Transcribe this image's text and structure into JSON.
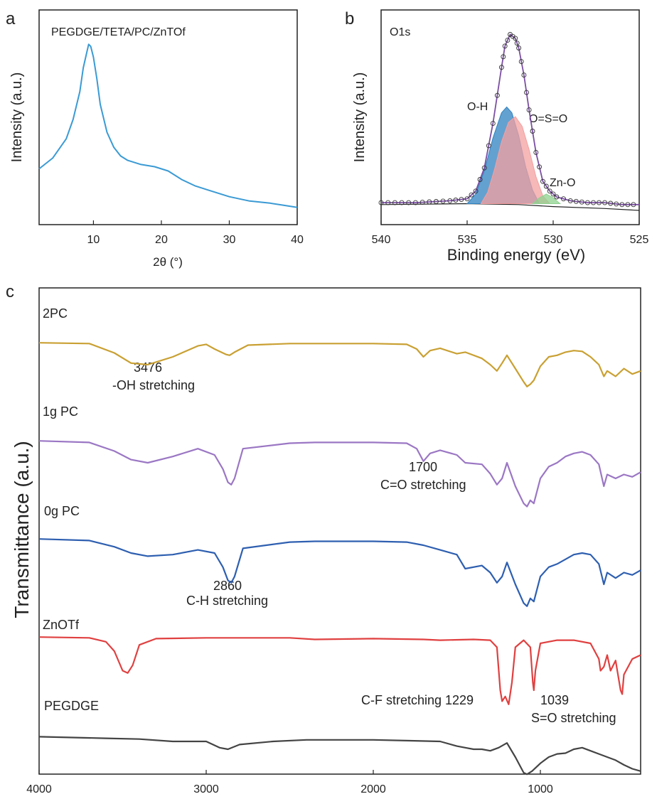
{
  "panels": {
    "a": {
      "label": "a"
    },
    "b": {
      "label": "b"
    },
    "c": {
      "label": "c"
    }
  },
  "chart_data": [
    {
      "panel": "a",
      "type": "line",
      "title": "PEGDGE/TETA/PC/ZnTOf",
      "xlabel": "2θ (°)",
      "ylabel": "Intensity (a.u.)",
      "xlim": [
        2,
        40
      ],
      "ylim": [
        0,
        1
      ],
      "xticks": [
        10,
        20,
        30,
        40
      ],
      "y_ticks_shown": false,
      "color": "#3a9ad4",
      "series": [
        {
          "x": [
            2,
            4,
            6,
            7,
            8,
            8.5,
            9,
            9.3,
            9.6,
            10,
            10.5,
            11,
            12,
            13,
            14,
            15,
            17,
            19,
            21,
            23,
            25,
            27,
            30,
            33,
            36,
            38,
            40
          ],
          "y": [
            0.26,
            0.31,
            0.4,
            0.49,
            0.62,
            0.73,
            0.8,
            0.84,
            0.83,
            0.78,
            0.68,
            0.56,
            0.43,
            0.36,
            0.32,
            0.3,
            0.28,
            0.27,
            0.25,
            0.21,
            0.18,
            0.16,
            0.13,
            0.11,
            0.1,
            0.09,
            0.08
          ]
        }
      ]
    },
    {
      "panel": "b",
      "type": "line",
      "title": "O1s",
      "xlabel": "Binding energy (eV)",
      "ylabel": "Intensity (a.u.)",
      "xlim": [
        540,
        525
      ],
      "ylim": [
        0,
        1
      ],
      "xticks": [
        540,
        535,
        530,
        525
      ],
      "y_ticks_shown": false,
      "annotations": [
        "O-H",
        "O=S=O",
        "Zn-O"
      ],
      "series": [
        {
          "role": "envelope",
          "color": "#7b4fa3",
          "x": [
            540,
            538,
            536,
            535,
            534.5,
            534,
            533.5,
            533,
            532.8,
            532.5,
            532.2,
            532,
            531.7,
            531.4,
            531,
            530.6,
            530.2,
            529.8,
            529,
            528,
            527,
            526,
            525
          ],
          "y": [
            0.04,
            0.04,
            0.05,
            0.06,
            0.1,
            0.22,
            0.45,
            0.74,
            0.85,
            0.91,
            0.89,
            0.84,
            0.7,
            0.52,
            0.3,
            0.15,
            0.1,
            0.07,
            0.05,
            0.04,
            0.04,
            0.03,
            0.03
          ]
        },
        {
          "role": "component",
          "name": "O-H",
          "fill": "#2f82c0",
          "x": [
            535,
            534.5,
            534,
            533.5,
            533,
            532.7,
            532.4,
            532,
            531.6,
            531.2,
            530.8
          ],
          "y": [
            0.0,
            0.05,
            0.17,
            0.34,
            0.47,
            0.5,
            0.47,
            0.35,
            0.19,
            0.07,
            0.0
          ]
        },
        {
          "role": "component",
          "name": "O=S=O",
          "fill": "#f4a0a0",
          "x": [
            534.2,
            533.8,
            533.4,
            533,
            532.6,
            532.2,
            531.8,
            531.4,
            531,
            530.6,
            530.2
          ],
          "y": [
            0.0,
            0.06,
            0.18,
            0.32,
            0.42,
            0.45,
            0.4,
            0.28,
            0.14,
            0.04,
            0.0
          ]
        },
        {
          "role": "component",
          "name": "Zn-O",
          "fill": "#8fd18f",
          "x": [
            531.2,
            530.8,
            530.4,
            530,
            529.6
          ],
          "y": [
            0.0,
            0.03,
            0.05,
            0.03,
            0.0
          ]
        }
      ]
    },
    {
      "panel": "c",
      "type": "line",
      "xlabel": "",
      "ylabel": "Transmittance (a.u.)",
      "xlim": [
        4000,
        400
      ],
      "xticks": [
        4000,
        3000,
        2000,
        1000
      ],
      "y_ticks_shown": false,
      "series": [
        {
          "name": "2PC",
          "color": "#c9a032",
          "offset": 4,
          "x": [
            4000,
            3700,
            3550,
            3450,
            3350,
            3200,
            3050,
            3000,
            2950,
            2880,
            2860,
            2830,
            2750,
            2500,
            2000,
            1800,
            1740,
            1700,
            1660,
            1600,
            1500,
            1450,
            1350,
            1300,
            1260,
            1229,
            1200,
            1150,
            1100,
            1080,
            1060,
            1039,
            1000,
            950,
            900,
            850,
            800,
            750,
            700,
            650,
            620,
            600,
            550,
            500,
            450,
            400
          ],
          "y": [
            0.98,
            0.97,
            0.85,
            0.72,
            0.7,
            0.8,
            0.94,
            0.96,
            0.9,
            0.83,
            0.82,
            0.86,
            0.95,
            0.97,
            0.97,
            0.96,
            0.9,
            0.8,
            0.88,
            0.91,
            0.84,
            0.86,
            0.78,
            0.7,
            0.62,
            0.72,
            0.82,
            0.65,
            0.48,
            0.42,
            0.45,
            0.5,
            0.68,
            0.8,
            0.82,
            0.86,
            0.88,
            0.87,
            0.8,
            0.7,
            0.55,
            0.62,
            0.55,
            0.65,
            0.58,
            0.62
          ]
        },
        {
          "name": "1g PC",
          "color": "#9b77c4",
          "offset": 3,
          "x": [
            4000,
            3700,
            3550,
            3450,
            3350,
            3200,
            3050,
            2950,
            2900,
            2870,
            2850,
            2830,
            2780,
            2500,
            2350,
            2000,
            1800,
            1740,
            1700,
            1660,
            1600,
            1500,
            1450,
            1350,
            1300,
            1260,
            1229,
            1200,
            1150,
            1100,
            1080,
            1060,
            1039,
            1000,
            950,
            900,
            850,
            800,
            750,
            700,
            650,
            620,
            600,
            550,
            500,
            450,
            400
          ],
          "y": [
            0.98,
            0.96,
            0.85,
            0.74,
            0.7,
            0.78,
            0.88,
            0.8,
            0.62,
            0.45,
            0.42,
            0.5,
            0.88,
            0.95,
            0.96,
            0.96,
            0.95,
            0.88,
            0.72,
            0.82,
            0.86,
            0.8,
            0.7,
            0.68,
            0.56,
            0.42,
            0.5,
            0.7,
            0.4,
            0.18,
            0.14,
            0.22,
            0.18,
            0.5,
            0.65,
            0.7,
            0.78,
            0.82,
            0.84,
            0.8,
            0.68,
            0.4,
            0.55,
            0.5,
            0.55,
            0.52,
            0.58
          ]
        },
        {
          "name": "0g PC",
          "color": "#2e5fb0",
          "offset": 2,
          "x": [
            4000,
            3700,
            3550,
            3450,
            3350,
            3200,
            3050,
            2950,
            2900,
            2870,
            2850,
            2830,
            2780,
            2500,
            2350,
            2000,
            1800,
            1700,
            1600,
            1500,
            1450,
            1350,
            1300,
            1260,
            1229,
            1200,
            1150,
            1100,
            1080,
            1060,
            1039,
            1000,
            950,
            900,
            850,
            800,
            750,
            700,
            650,
            620,
            600,
            550,
            500,
            450,
            400
          ],
          "y": [
            0.98,
            0.96,
            0.88,
            0.8,
            0.76,
            0.78,
            0.84,
            0.8,
            0.62,
            0.45,
            0.42,
            0.5,
            0.86,
            0.94,
            0.95,
            0.95,
            0.94,
            0.9,
            0.84,
            0.78,
            0.6,
            0.64,
            0.55,
            0.42,
            0.5,
            0.68,
            0.4,
            0.16,
            0.12,
            0.22,
            0.18,
            0.5,
            0.62,
            0.66,
            0.72,
            0.78,
            0.8,
            0.78,
            0.66,
            0.4,
            0.55,
            0.48,
            0.55,
            0.52,
            0.58
          ]
        },
        {
          "name": "ZnOTf",
          "color": "#e04040",
          "offset": 1,
          "x": [
            4000,
            3700,
            3600,
            3550,
            3500,
            3470,
            3440,
            3400,
            3300,
            3000,
            2500,
            2350,
            2000,
            1700,
            1600,
            1400,
            1300,
            1260,
            1240,
            1229,
            1210,
            1190,
            1170,
            1150,
            1100,
            1060,
            1045,
            1039,
            1030,
            1000,
            900,
            800,
            700,
            650,
            640,
            620,
            600,
            580,
            550,
            520,
            510,
            500,
            450,
            400
          ],
          "y": [
            0.98,
            0.97,
            0.92,
            0.8,
            0.55,
            0.52,
            0.62,
            0.88,
            0.96,
            0.97,
            0.97,
            0.95,
            0.96,
            0.95,
            0.94,
            0.95,
            0.94,
            0.85,
            0.3,
            0.16,
            0.22,
            0.12,
            0.4,
            0.85,
            0.94,
            0.85,
            0.4,
            0.3,
            0.55,
            0.9,
            0.94,
            0.94,
            0.9,
            0.7,
            0.55,
            0.6,
            0.75,
            0.55,
            0.68,
            0.3,
            0.25,
            0.5,
            0.7,
            0.75
          ]
        },
        {
          "name": "PEGDGE",
          "color": "#444444",
          "offset": 0,
          "x": [
            4000,
            3600,
            3400,
            3200,
            3000,
            2920,
            2870,
            2800,
            2600,
            2400,
            2000,
            1800,
            1600,
            1500,
            1450,
            1400,
            1350,
            1300,
            1250,
            1200,
            1150,
            1100,
            1080,
            1050,
            1000,
            950,
            900,
            850,
            800,
            750,
            700,
            650,
            600,
            550,
            500,
            450,
            400
          ],
          "y": [
            0.96,
            0.94,
            0.93,
            0.9,
            0.9,
            0.82,
            0.8,
            0.86,
            0.9,
            0.92,
            0.92,
            0.91,
            0.9,
            0.84,
            0.82,
            0.8,
            0.8,
            0.78,
            0.82,
            0.88,
            0.7,
            0.5,
            0.48,
            0.52,
            0.62,
            0.7,
            0.74,
            0.75,
            0.8,
            0.82,
            0.78,
            0.74,
            0.7,
            0.66,
            0.6,
            0.55,
            0.52
          ]
        }
      ],
      "annotations": [
        {
          "text": "3476"
        },
        {
          "text": "-OH stretching"
        },
        {
          "text": "1700"
        },
        {
          "text": "C=O stretching"
        },
        {
          "text": "2860"
        },
        {
          "text": "C-H stretching"
        },
        {
          "text": "C-F stretching 1229"
        },
        {
          "text": "1039"
        },
        {
          "text": "S=O stretching"
        }
      ]
    }
  ]
}
